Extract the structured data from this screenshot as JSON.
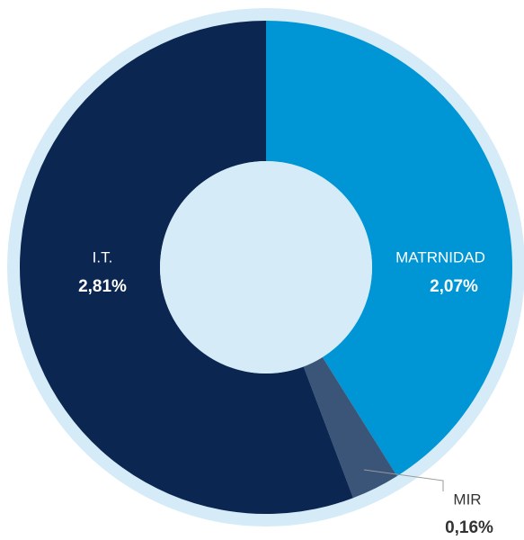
{
  "chart_data": {
    "type": "pie",
    "categories": [
      "MATRNIDAD",
      "MIR",
      "I.T."
    ],
    "values": [
      2.07,
      0.16,
      2.81
    ],
    "value_labels": [
      "2,07%",
      "0,16%",
      "2,81%"
    ],
    "colors": [
      "#0096d6",
      "#3b5579",
      "#0b2650"
    ]
  }
}
